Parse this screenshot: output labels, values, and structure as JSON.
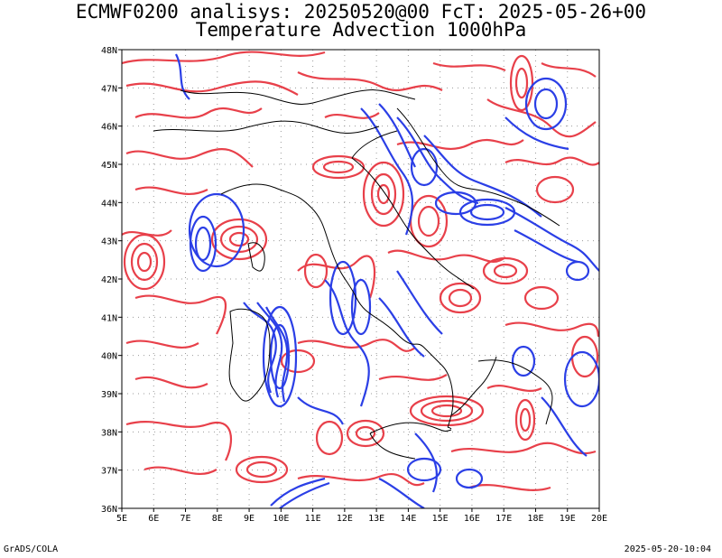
{
  "header": {
    "line1": "ECMWF0200 analisys: 20250520@00 FcT: 2025-05-26+00",
    "line2": "Temperature Advection 1000hPa"
  },
  "map": {
    "lon_range": [
      5,
      20
    ],
    "lat_range": [
      36,
      48
    ],
    "lon_ticks": [
      "5E",
      "6E",
      "7E",
      "8E",
      "9E",
      "10E",
      "11E",
      "12E",
      "13E",
      "14E",
      "15E",
      "16E",
      "17E",
      "18E",
      "19E",
      "20E"
    ],
    "lat_ticks": [
      "36N",
      "37N",
      "38N",
      "39N",
      "40N",
      "41N",
      "42N",
      "43N",
      "44N",
      "45N",
      "46N",
      "47N",
      "48N"
    ],
    "gridlines": true,
    "colors": {
      "warm_advection": "#e8404a",
      "cold_advection": "#2b3fe6",
      "coastline": "#000000",
      "grid": "#999999"
    }
  },
  "footer": {
    "left": "GrADS/COLA",
    "right": "2025-05-20-10:04"
  }
}
